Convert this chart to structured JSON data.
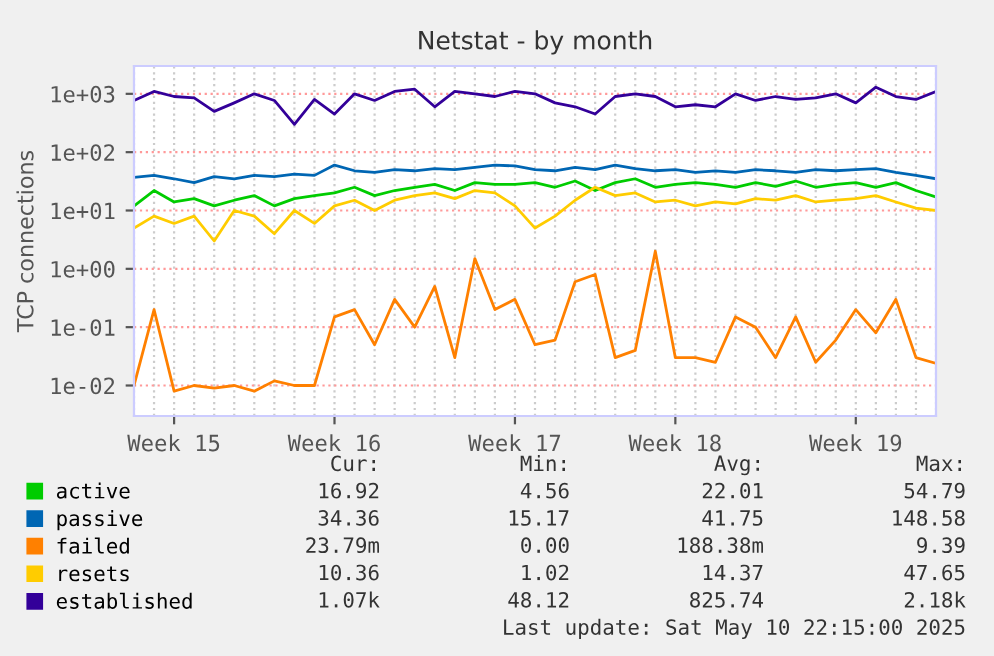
{
  "chart_data": {
    "type": "line",
    "title": "Netstat - by month",
    "ylabel": "TCP connections",
    "log": true,
    "grid": true,
    "legend": "bottom left",
    "marker": "none",
    "line_style": "solid",
    "categories": [
      null,
      null,
      "Week 15",
      null,
      null,
      null,
      null,
      null,
      null,
      null,
      "Week 16",
      null,
      null,
      null,
      null,
      null,
      null,
      null,
      null,
      "Week 17",
      null,
      null,
      null,
      null,
      null,
      null,
      null,
      "Week 18",
      null,
      null,
      null,
      null,
      null,
      null,
      null,
      null,
      "Week 19",
      null,
      null,
      null,
      null
    ],
    "ylim": [
      0.003,
      3000
    ],
    "yticks": [
      {
        "value": 0.01,
        "label": "1e-02"
      },
      {
        "value": 0.1,
        "label": "1e-01"
      },
      {
        "value": 1,
        "label": "1e+00"
      },
      {
        "value": 10,
        "label": "1e+01"
      },
      {
        "value": 100,
        "label": "1e+02"
      },
      {
        "value": 1000,
        "label": "1e+03"
      }
    ],
    "series": [
      {
        "name": "active",
        "color": "#00cc00",
        "values": [
          12,
          22,
          14,
          16,
          12,
          15,
          18,
          12,
          16,
          18,
          20,
          25,
          18,
          22,
          25,
          28,
          22,
          30,
          28,
          28,
          30,
          25,
          32,
          22,
          30,
          35,
          25,
          28,
          30,
          28,
          25,
          30,
          26,
          32,
          25,
          28,
          30,
          25,
          30,
          22,
          17
        ]
      },
      {
        "name": "passive",
        "color": "#0066b3",
        "values": [
          37,
          40,
          35,
          30,
          38,
          35,
          40,
          38,
          42,
          40,
          60,
          48,
          45,
          50,
          48,
          52,
          50,
          55,
          60,
          58,
          50,
          48,
          55,
          50,
          60,
          52,
          48,
          50,
          45,
          48,
          45,
          50,
          48,
          45,
          50,
          48,
          50,
          52,
          45,
          40,
          35
        ]
      },
      {
        "name": "failed",
        "color": "#ff8000",
        "values": [
          0.01,
          0.2,
          0.008,
          0.01,
          0.009,
          0.01,
          0.008,
          0.012,
          0.01,
          0.01,
          0.15,
          0.2,
          0.05,
          0.3,
          0.1,
          0.5,
          0.03,
          1.5,
          0.2,
          0.3,
          0.05,
          0.06,
          0.6,
          0.8,
          0.03,
          0.04,
          2,
          0.03,
          0.03,
          0.025,
          0.15,
          0.1,
          0.03,
          0.15,
          0.025,
          0.06,
          0.2,
          0.08,
          0.3,
          0.03,
          0.024
        ]
      },
      {
        "name": "resets",
        "color": "#ffcc00",
        "values": [
          5,
          8,
          6,
          8,
          3,
          10,
          8,
          4,
          10,
          6,
          12,
          15,
          10,
          15,
          18,
          20,
          16,
          22,
          20,
          12,
          5,
          8,
          15,
          25,
          18,
          20,
          14,
          15,
          12,
          14,
          13,
          16,
          15,
          18,
          14,
          15,
          16,
          18,
          14,
          11,
          10
        ]
      },
      {
        "name": "established",
        "color": "#330099",
        "values": [
          770,
          1100,
          900,
          850,
          500,
          700,
          1000,
          770,
          300,
          800,
          450,
          1000,
          770,
          1100,
          1200,
          600,
          1100,
          1000,
          900,
          1100,
          1000,
          700,
          600,
          450,
          900,
          1000,
          900,
          600,
          650,
          600,
          1000,
          770,
          900,
          800,
          850,
          1000,
          700,
          1300,
          900,
          800,
          1100
        ]
      }
    ],
    "annotations": [
      "Cur:",
      "Min:",
      "Avg:",
      "Max:",
      "16.92",
      "4.56",
      "22.01",
      "54.79",
      "34.36",
      "15.17",
      "41.75",
      "148.58",
      "23.79m",
      "0.00",
      "188.38m",
      "9.39",
      "10.36",
      "1.02",
      "14.37",
      "47.65",
      "1.07k",
      "48.12",
      "825.74",
      "2.18k",
      "Last update: Sat May 10 22:15:00 2025"
    ]
  }
}
